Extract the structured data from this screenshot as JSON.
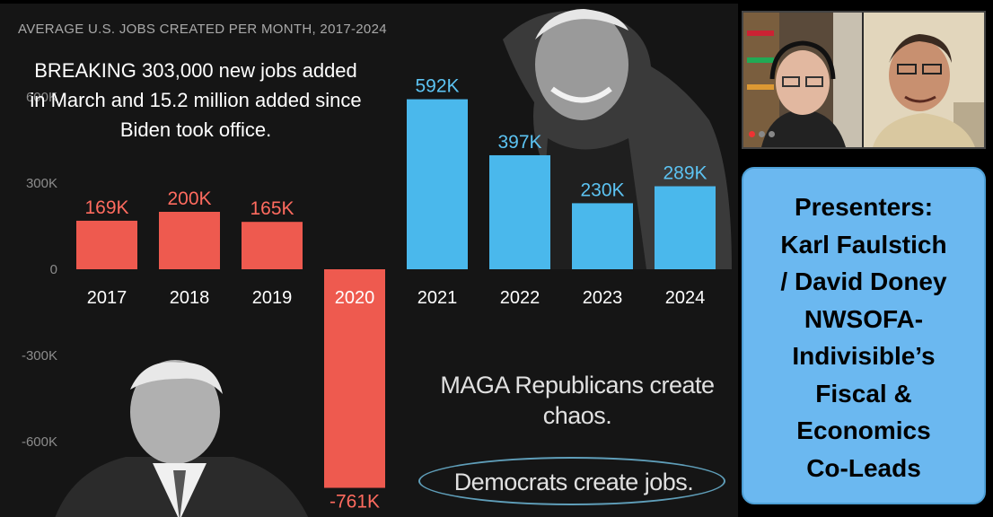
{
  "slide": {
    "chart_title": "AVERAGE U.S. JOBS CREATED PER MONTH, 2017-2024",
    "breaking_text": "BREAKING 303,000 new jobs added in March and 15.2 million added since Biden took office.",
    "slogan_chaos": "MAGA Republicans create chaos.",
    "slogan_jobs": "Democrats create jobs."
  },
  "chart_data": {
    "type": "bar",
    "title": "AVERAGE U.S. JOBS CREATED PER MONTH, 2017-2024",
    "categories": [
      "2017",
      "2018",
      "2019",
      "2020",
      "2021",
      "2022",
      "2023",
      "2024"
    ],
    "values": [
      169000,
      200000,
      165000,
      -761000,
      592000,
      397000,
      230000,
      289000
    ],
    "value_labels": [
      "169K",
      "200K",
      "165K",
      "-761K",
      "592K",
      "397K",
      "230K",
      "289K"
    ],
    "ylim": [
      -761000,
      600000
    ],
    "yticks": [
      {
        "value": 600000,
        "label": "600K"
      },
      {
        "value": 300000,
        "label": "300K"
      },
      {
        "value": 0,
        "label": "0"
      },
      {
        "value": -300000,
        "label": "-300K"
      },
      {
        "value": -600000,
        "label": "-600K"
      }
    ],
    "grid": false,
    "colors": {
      "republican_bars": "#ee5a4f",
      "republican_labels": "#ff6b5f",
      "democrat_bars": "#4ab8ec",
      "democrat_labels": "#5cc3f2"
    },
    "bar_colors": [
      "#ee5a4f",
      "#ee5a4f",
      "#ee5a4f",
      "#ee5a4f",
      "#4ab8ec",
      "#4ab8ec",
      "#4ab8ec",
      "#4ab8ec"
    ],
    "label_colors": [
      "#ff6b5f",
      "#ff6b5f",
      "#ff6b5f",
      "#ff6b5f",
      "#5cc3f2",
      "#5cc3f2",
      "#5cc3f2",
      "#5cc3f2"
    ]
  },
  "video": {
    "participants": [
      "participant-1",
      "participant-2"
    ]
  },
  "presenters": {
    "lines": [
      "Presenters:",
      "Karl Faulstich",
      "/ David Doney",
      "NWSOFA-",
      "Indivisible’s",
      "Fiscal &",
      "Economics",
      "Co-Leads"
    ]
  },
  "theme": {
    "panel_blue": "#6bb8f0",
    "background": "#151515"
  }
}
